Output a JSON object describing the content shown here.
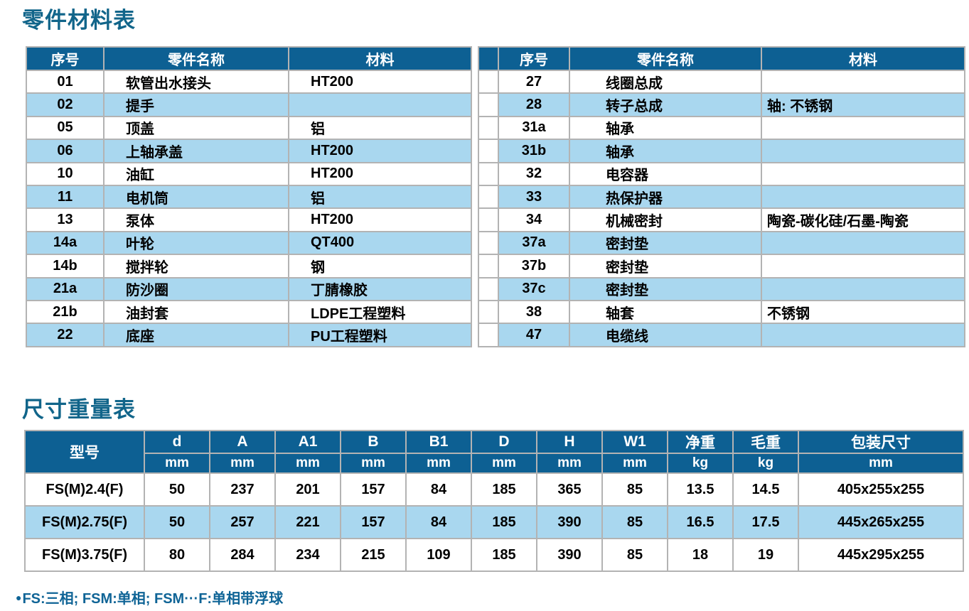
{
  "titles": {
    "parts": "零件材料表",
    "dims": "尺寸重量表"
  },
  "parts_headers": [
    "序号",
    "零件名称",
    "材料"
  ],
  "parts_left": {
    "rows": [
      {
        "no": "01",
        "name": "软管出水接头",
        "material": "HT200"
      },
      {
        "no": "02",
        "name": "提手",
        "material": ""
      },
      {
        "no": "05",
        "name": "顶盖",
        "material": "铝"
      },
      {
        "no": "06",
        "name": "上轴承盖",
        "material": "HT200"
      },
      {
        "no": "10",
        "name": "油缸",
        "material": "HT200"
      },
      {
        "no": "11",
        "name": "电机筒",
        "material": "铝"
      },
      {
        "no": "13",
        "name": "泵体",
        "material": "HT200"
      },
      {
        "no": "14a",
        "name": "叶轮",
        "material": "QT400"
      },
      {
        "no": "14b",
        "name": "搅拌轮",
        "material": "钢"
      },
      {
        "no": "21a",
        "name": "防沙圈",
        "material": "丁腈橡胶"
      },
      {
        "no": "21b",
        "name": "油封套",
        "material": "LDPE工程塑料"
      },
      {
        "no": "22",
        "name": "底座",
        "material": "PU工程塑料"
      }
    ]
  },
  "parts_right": {
    "rows": [
      {
        "no": "27",
        "name": "线圈总成",
        "material": ""
      },
      {
        "no": "28",
        "name": "转子总成",
        "material": "轴: 不锈钢"
      },
      {
        "no": "31a",
        "name": "轴承",
        "material": ""
      },
      {
        "no": "31b",
        "name": "轴承",
        "material": ""
      },
      {
        "no": "32",
        "name": "电容器",
        "material": ""
      },
      {
        "no": "33",
        "name": "热保护器",
        "material": ""
      },
      {
        "no": "34",
        "name": "机械密封",
        "material": "陶瓷-碳化硅/石墨-陶瓷"
      },
      {
        "no": "37a",
        "name": "密封垫",
        "material": ""
      },
      {
        "no": "37b",
        "name": "密封垫",
        "material": ""
      },
      {
        "no": "37c",
        "name": "密封垫",
        "material": ""
      },
      {
        "no": "38",
        "name": "轴套",
        "material": "不锈钢"
      },
      {
        "no": "47",
        "name": "电缆线",
        "material": ""
      }
    ]
  },
  "dims": {
    "model_header": "型号",
    "columns": [
      {
        "label": "d",
        "unit": "mm"
      },
      {
        "label": "A",
        "unit": "mm"
      },
      {
        "label": "A1",
        "unit": "mm"
      },
      {
        "label": "B",
        "unit": "mm"
      },
      {
        "label": "B1",
        "unit": "mm"
      },
      {
        "label": "D",
        "unit": "mm"
      },
      {
        "label": "H",
        "unit": "mm"
      },
      {
        "label": "W1",
        "unit": "mm"
      },
      {
        "label": "净重",
        "unit": "kg"
      },
      {
        "label": "毛重",
        "unit": "kg"
      },
      {
        "label": "包装尺寸",
        "unit": "mm"
      }
    ],
    "rows": [
      {
        "model": "FS(M)2.4(F)",
        "values": [
          "50",
          "237",
          "201",
          "157",
          "84",
          "185",
          "365",
          "85",
          "13.5",
          "14.5",
          "405x255x255"
        ]
      },
      {
        "model": "FS(M)2.75(F)",
        "values": [
          "50",
          "257",
          "221",
          "157",
          "84",
          "185",
          "390",
          "85",
          "16.5",
          "17.5",
          "445x265x255"
        ]
      },
      {
        "model": "FS(M)3.75(F)",
        "values": [
          "80",
          "284",
          "234",
          "215",
          "109",
          "185",
          "390",
          "85",
          "18",
          "19",
          "445x295x255"
        ]
      }
    ]
  },
  "footnote": {
    "bullet": "●",
    "text": "FS:三相; FSM:单相; FSM···F:单相带浮球"
  },
  "colors": {
    "header_blue": "#0d6093",
    "stripe_blue": "#a9d7ef",
    "title_blue": "#11658a",
    "grid_gray": "#b3b3b3",
    "footnote_blue": "#0f6496"
  }
}
